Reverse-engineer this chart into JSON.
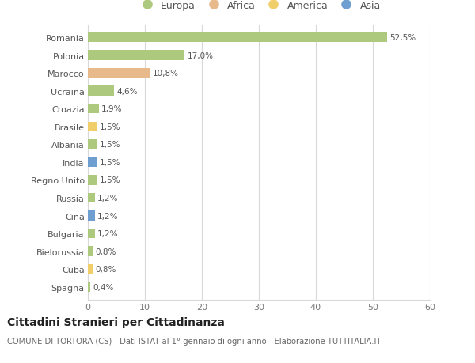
{
  "categories": [
    "Romania",
    "Polonia",
    "Marocco",
    "Ucraina",
    "Croazia",
    "Brasile",
    "Albania",
    "India",
    "Regno Unito",
    "Russia",
    "Cina",
    "Bulgaria",
    "Bielorussia",
    "Cuba",
    "Spagna"
  ],
  "values": [
    52.5,
    17.0,
    10.8,
    4.6,
    1.9,
    1.5,
    1.5,
    1.5,
    1.5,
    1.2,
    1.2,
    1.2,
    0.8,
    0.8,
    0.4
  ],
  "labels": [
    "52,5%",
    "17,0%",
    "10,8%",
    "4,6%",
    "1,9%",
    "1,5%",
    "1,5%",
    "1,5%",
    "1,5%",
    "1,2%",
    "1,2%",
    "1,2%",
    "0,8%",
    "0,8%",
    "0,4%"
  ],
  "continents": [
    "Europa",
    "Europa",
    "Africa",
    "Europa",
    "Europa",
    "America",
    "Europa",
    "Asia",
    "Europa",
    "Europa",
    "Asia",
    "Europa",
    "Europa",
    "America",
    "Europa"
  ],
  "continent_colors": {
    "Europa": "#adc97e",
    "Africa": "#e8b98a",
    "America": "#f0ce6a",
    "Asia": "#6e9fd0"
  },
  "legend_entries": [
    "Europa",
    "Africa",
    "America",
    "Asia"
  ],
  "legend_colors": [
    "#adc97e",
    "#e8b98a",
    "#f0ce6a",
    "#6e9fd0"
  ],
  "xlim": [
    0,
    60
  ],
  "xticks": [
    0,
    10,
    20,
    30,
    40,
    50,
    60
  ],
  "title": "Cittadini Stranieri per Cittadinanza",
  "subtitle": "COMUNE DI TORTORA (CS) - Dati ISTAT al 1° gennaio di ogni anno - Elaborazione TUTTITALIA.IT",
  "background_color": "#ffffff",
  "grid_color": "#d8d8d8",
  "bar_height": 0.55
}
